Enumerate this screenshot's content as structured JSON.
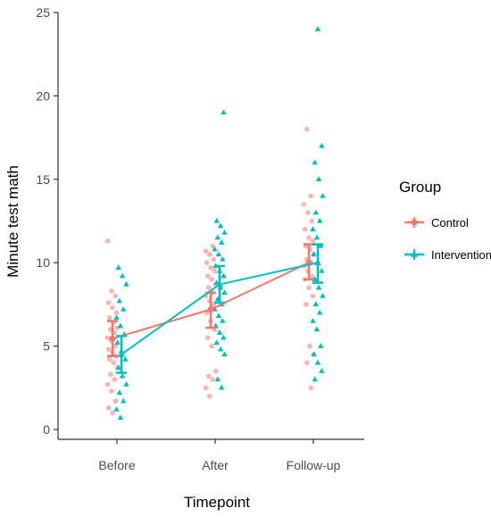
{
  "chart_data": {
    "type": "scatter",
    "xlabel": "Timepoint",
    "ylabel": "Minute test math",
    "categories": [
      "Before",
      "After",
      "Follow-up"
    ],
    "ylim": [
      0,
      25
    ],
    "yticks": [
      0,
      5,
      10,
      15,
      20,
      25
    ],
    "grid": false,
    "legend": {
      "title": "Group",
      "placement": "right"
    },
    "colors": {
      "Control": "#f8766d",
      "Intervention": "#00bfc4"
    },
    "series": [
      {
        "name": "Control",
        "marker": "circle",
        "means": [
          5.45,
          7.2,
          10.0
        ],
        "error_low": [
          4.4,
          6.1,
          9.0
        ],
        "error_high": [
          6.5,
          8.2,
          11.1
        ],
        "points": [
          [
            11.3,
            8.3,
            8.0,
            7.6,
            7.3,
            7.0,
            6.7,
            6.4,
            6.1,
            6.0,
            5.8,
            5.5,
            5.3,
            5.0,
            4.8,
            4.6,
            4.4,
            4.2,
            4.0,
            3.7,
            3.3,
            3.0,
            2.7,
            2.3,
            1.7,
            1.3,
            1.0
          ],
          [
            11.0,
            10.7,
            10.5,
            10.2,
            10.0,
            9.7,
            9.5,
            9.2,
            9.0,
            8.7,
            8.5,
            8.2,
            8.0,
            7.7,
            7.5,
            7.0,
            6.5,
            6.0,
            5.5,
            5.0,
            3.5,
            3.2,
            3.0,
            2.5,
            2.0
          ],
          [
            18.0,
            14.0,
            13.5,
            13.0,
            12.5,
            12.0,
            11.5,
            11.3,
            11.0,
            10.8,
            10.5,
            10.2,
            10.0,
            9.8,
            9.5,
            9.2,
            9.0,
            8.5,
            8.0,
            7.5,
            5.0,
            4.5,
            4.0,
            2.5
          ]
        ]
      },
      {
        "name": "Intervention",
        "marker": "triangle",
        "means": [
          4.5,
          8.7,
          10.0
        ],
        "error_low": [
          3.4,
          7.6,
          8.8
        ],
        "error_high": [
          5.6,
          9.8,
          11.1
        ],
        "points": [
          [
            9.7,
            9.2,
            8.7,
            7.7,
            7.2,
            6.7,
            6.2,
            5.7,
            5.2,
            4.7,
            4.2,
            3.7,
            3.2,
            2.7,
            2.2,
            1.7,
            1.2,
            0.7
          ],
          [
            19.0,
            12.5,
            12.2,
            11.8,
            11.5,
            11.2,
            10.8,
            10.5,
            10.2,
            9.8,
            9.5,
            9.2,
            8.8,
            8.5,
            8.2,
            7.8,
            7.5,
            7.2,
            6.8,
            6.5,
            6.2,
            5.8,
            5.5,
            5.2,
            4.8,
            4.5,
            3.0,
            2.5
          ],
          [
            24.0,
            17.0,
            16.0,
            15.0,
            14.0,
            13.0,
            12.5,
            12.0,
            11.5,
            11.0,
            10.5,
            10.0,
            9.5,
            9.0,
            8.5,
            8.0,
            7.5,
            7.0,
            6.5,
            6.0,
            5.0,
            4.5,
            4.0,
            3.5,
            3.0
          ]
        ]
      }
    ]
  }
}
